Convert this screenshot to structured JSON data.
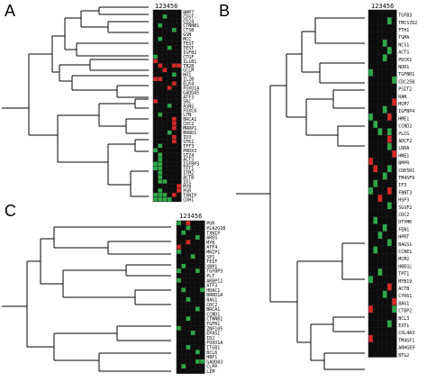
{
  "colors": {
    "red": "#d62a2a",
    "green": "#2ea84a",
    "black": "#0c0c0c",
    "grid": "#1a1a1a"
  },
  "panels": [
    {
      "letter": "A",
      "header": "123456",
      "genes": [
        "BMP7",
        "CDST-",
        "CD24",
        "CTNNB1",
        "CTSB",
        "GSN",
        "MCC",
        "TEST",
        "TEST",
        "IGFB2",
        "CTGF",
        "IL1B1",
        "TM2B",
        "GCLM",
        "HO1",
        "IL2B",
        "ELK4",
        "FOXO1A",
        "GADD45",
        "ATF3",
        "SRC",
        "ASNS",
        "FOXC6",
        "LYN",
        "BRCA1",
        "CDC2",
        "MRRP1",
        "BRRD1",
        "ID3",
        "STK1",
        "TFF3",
        "PRDX3",
        "STY4",
        "ACTS",
        "IGFBP3",
        "TFT1",
        "ITM2",
        "ACTB",
        "ID1",
        "MYB",
        "PGR",
        "TXNIP",
        "CDH1"
      ],
      "cells": [
        "kkkkkk",
        "kkgkkk",
        "kkkkkk",
        "kgkkkk",
        "kkkkgk",
        "kkkkkk",
        "kgkkkk",
        "kkkkkk",
        "kkkgkk",
        "kkkkkk",
        "gkkkkk",
        "rkkkkk",
        "krkkrr",
        "kkrkkk",
        "kkkkgk",
        "rrkkkk",
        "kkkkrk",
        "kkkrkk",
        "kkkkkk",
        "kkkkkk",
        "rkkkkk",
        "kkkgkk",
        "kkkkkk",
        "kgkkkk",
        "kkkkrk",
        "kkkkrk",
        "kkkkrk",
        "kkkgkk",
        "kkkkrk",
        "kkkkrk",
        "kgkkkk",
        "gkkkkk",
        "kgkkkk",
        "kgkkkk",
        "ggkkkk",
        "ggkkkk",
        "kgkkkk",
        "kgkkkk",
        "kggkkk",
        "kkkkkr",
        "kgkkkr",
        "gggkrk",
        "ggggkk"
      ]
    },
    {
      "letter": "B",
      "header": "123456",
      "genes": [
        "TGFB3",
        "TMCS7D2",
        "FTH1",
        "TGMA",
        "NCS1",
        "ACTS",
        "PDCK1",
        "NDR1",
        "TGFBR1",
        "CDC25B",
        "PSIT2",
        "RAN",
        "MCM7",
        "IGFBP4",
        "HME1",
        "CCND2",
        "PLCG",
        "ADCF2",
        "LRRA",
        "HNE1",
        "BMPR",
        "CDK5R1",
        "TM4SF9",
        "IF3",
        "FBNT3",
        "HSP3",
        "SGSF2",
        "CDC2",
        "DTYMK",
        "FEN1",
        "HPRT",
        "BAGS1",
        "CCNE1",
        "MCM2",
        "HBEGL",
        "TPT1",
        "MYB19",
        "ACTB",
        "CYR61",
        "BAG1",
        "CTBP2",
        "BCL3",
        "EXT1",
        "COL4A3",
        "TM4SF1",
        "ARHGE9",
        "BTG2"
      ],
      "cells": [
        "kkkkkk",
        "kkkkgk",
        "kkkkkk",
        "kkkkkk",
        "kkkgkk",
        "kkkkgk",
        "kkkgkk",
        "kkkkkk",
        "gkkkkk",
        "kkkkkg",
        "kkkkkk",
        "kkkkkk",
        "kkkkkr",
        "kkkgkk",
        "gkkkrk",
        "kgkkkk",
        "kkgkgk",
        "kkkkrk",
        "kkkkgk",
        "kkkkkr",
        "rkkkkk",
        "krkkgk",
        "kkkgkk",
        "kgkkkk",
        "gkkkrk",
        "kkrkkk",
        "kkkkgk",
        "kkkkkk",
        "kgkkkk",
        "kkkgkk",
        "kkgkkk",
        "kkkkgk",
        "kgkkkk",
        "kkkkkk",
        "kkkkkk",
        "kkgkkk",
        "gkkkkk",
        "kkkkrk",
        "kkkgkk",
        "kkkkkr",
        "rkkkkg",
        "kkkkkk",
        "kkkkgk",
        "kkkkkk",
        "rkkkkk",
        "kkkkkk",
        "kkkkkk"
      ]
    },
    {
      "letter": "C",
      "header": "123456",
      "genes": [
        "PGR",
        "PLA2G1B",
        "TXNIP",
        "AREG",
        "MYB",
        "ATF4",
        "MRIP1",
        "SP1",
        "TEIF",
        "XBP1",
        "TGFBPS",
        "PLT",
        "AKBP12",
        "ATF3",
        "HDAC1",
        "BRRD1A",
        "BAG1",
        "CDC2",
        "BRCA1",
        "CCND1",
        "CTNNB1",
        "TGFB1",
        "ZNF105",
        "EPAS1",
        "ID2",
        "FOXO1A",
        "ITGB1",
        "BCL6",
        "HBP1",
        "GADD83",
        "CLPP",
        "LIM"
      ],
      "cells": [
        "gkrkkk",
        "kkgkkk",
        "kgkkkk",
        "kkkkgk",
        "kkrkkk",
        "rkkkkk",
        "gkkkkk",
        "kkkgkk",
        "kkkkkk",
        "kgkkkk",
        "gkkkgk",
        "kkkkkk",
        "gkkkkk",
        "kkkkkk",
        "kgkkkg",
        "kkkkkk",
        "kkgkkk",
        "kkkkkk",
        "kkkkgk",
        "kkkkkk",
        "kkgkkk",
        "kkkkkk",
        "gkkkkk",
        "kkkgkk",
        "kkkkkk",
        "kkkkkk",
        "kkgkkk",
        "kkkkgk",
        "kkkkkk",
        "kkkkgg",
        "kgkkkk",
        "kkkkkk"
      ]
    }
  ]
}
